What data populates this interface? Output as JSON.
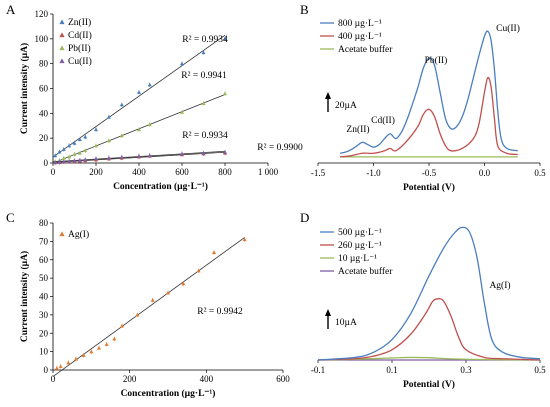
{
  "chart_data": [
    {
      "panel": "A",
      "type": "scatter",
      "xlabel": "Concentration (µg·L⁻¹)",
      "ylabel": "Current intensity (µA)",
      "xlim": [
        0,
        1000
      ],
      "ylim": [
        0,
        120
      ],
      "xticks": [
        "0",
        "200",
        "400",
        "600",
        "800",
        "1 000"
      ],
      "yticks": [
        "0",
        "20",
        "40",
        "60",
        "80",
        "100",
        "120"
      ],
      "grid": false,
      "legend_position": "top-left",
      "series": [
        {
          "name": "Zn(II)",
          "color": "#4a7ebf",
          "marker": "triangle",
          "x": [
            10,
            30,
            50,
            75,
            100,
            125,
            150,
            200,
            260,
            320,
            400,
            450,
            600,
            700,
            800
          ],
          "y": [
            6,
            9,
            11,
            14,
            16,
            19,
            21,
            27,
            37,
            47,
            57,
            63,
            80,
            89,
            100
          ],
          "r2": "R² = 0.9934"
        },
        {
          "name": "Cd(II)",
          "color": "#c0504d",
          "marker": "triangle",
          "x": [
            10,
            30,
            50,
            75,
            100,
            125,
            150,
            200,
            260,
            320,
            400,
            450,
            600,
            700,
            800
          ],
          "y": [
            0.3,
            0.5,
            0.8,
            1.1,
            1.4,
            1.7,
            2,
            2.6,
            3.4,
            4,
            5,
            5.6,
            6.8,
            7.4,
            8
          ],
          "r2": "R² = 0.9900"
        },
        {
          "name": "Pb(II)",
          "color": "#9bbb59",
          "marker": "triangle",
          "x": [
            10,
            30,
            50,
            75,
            100,
            125,
            150,
            200,
            260,
            320,
            400,
            450,
            600,
            700,
            800
          ],
          "y": [
            1,
            2,
            4,
            5,
            7,
            8,
            10,
            14,
            18,
            22,
            27,
            31,
            41,
            48,
            56
          ],
          "r2": "R² = 0.9941"
        },
        {
          "name": "Cu(II)",
          "color": "#7f5ea8",
          "marker": "triangle",
          "x": [
            10,
            30,
            50,
            75,
            100,
            125,
            150,
            200,
            260,
            320,
            400,
            450,
            600,
            700,
            800
          ],
          "y": [
            0.5,
            0.8,
            1.2,
            1.6,
            2,
            2.4,
            2.8,
            3.6,
            4.2,
            4.9,
            5.7,
            6.2,
            7.5,
            8,
            8.8
          ],
          "r2": "R² = 0.9934"
        }
      ]
    },
    {
      "panel": "B",
      "type": "line",
      "xlabel": "Potential (V)",
      "xlim": [
        -1.5,
        0.5
      ],
      "xticks": [
        "-1.5",
        "-1.0",
        "-0.5",
        "0.0",
        "0.5"
      ],
      "scale_bar": "20µA",
      "legend_position": "top-left",
      "peak_labels": [
        "Zn(II)",
        "Cd(II)",
        "Pb(II)",
        "Cu(II)"
      ],
      "series": [
        {
          "name": "800 µg·L⁻¹",
          "color": "#4a7ebf",
          "x": [
            -1.3,
            -1.25,
            -1.2,
            -1.15,
            -1.1,
            -1.05,
            -1.0,
            -0.95,
            -0.9,
            -0.85,
            -0.8,
            -0.75,
            -0.7,
            -0.65,
            -0.6,
            -0.55,
            -0.5,
            -0.45,
            -0.4,
            -0.35,
            -0.3,
            -0.25,
            -0.2,
            -0.15,
            -0.1,
            -0.05,
            0.0,
            0.03,
            0.06,
            0.09,
            0.12,
            0.15,
            0.2,
            0.3
          ],
          "y": [
            8,
            9,
            11,
            14,
            17,
            15,
            13,
            15,
            20,
            24,
            20,
            25,
            35,
            48,
            62,
            78,
            86,
            80,
            58,
            36,
            28,
            30,
            38,
            52,
            70,
            88,
            104,
            108,
            100,
            76,
            42,
            20,
            12,
            10
          ]
        },
        {
          "name": "400 µg·L⁻¹",
          "color": "#c0504d",
          "x": [
            -1.3,
            -1.2,
            -1.1,
            -1.0,
            -0.9,
            -0.85,
            -0.8,
            -0.7,
            -0.6,
            -0.55,
            -0.5,
            -0.45,
            -0.4,
            -0.35,
            -0.3,
            -0.2,
            -0.1,
            -0.05,
            0.0,
            0.03,
            0.06,
            0.09,
            0.12,
            0.2,
            0.3
          ],
          "y": [
            5,
            6,
            8,
            8,
            10,
            12,
            10,
            18,
            30,
            40,
            44,
            38,
            24,
            14,
            10,
            12,
            20,
            32,
            58,
            70,
            62,
            36,
            14,
            8,
            7
          ]
        },
        {
          "name": "Acetate buffer",
          "color": "#9bbb59",
          "x": [
            -1.3,
            0.3
          ],
          "y": [
            5,
            5
          ]
        }
      ]
    },
    {
      "panel": "C",
      "type": "scatter",
      "xlabel": "Concentration (µg·L⁻¹)",
      "ylabel": "Current intensity (µA)",
      "xlim": [
        0,
        600
      ],
      "ylim": [
        0,
        80
      ],
      "xticks": [
        "0",
        "200",
        "400",
        "600"
      ],
      "yticks": [
        "0",
        "10",
        "20",
        "30",
        "40",
        "50",
        "60",
        "70",
        "80"
      ],
      "grid": false,
      "legend_position": "top-left",
      "series": [
        {
          "name": "Ag(I)",
          "color": "#e07a30",
          "marker": "triangle",
          "x": [
            10,
            20,
            40,
            60,
            80,
            100,
            120,
            140,
            160,
            180,
            220,
            260,
            300,
            340,
            380,
            420,
            500
          ],
          "y": [
            1,
            2,
            4,
            6,
            8,
            10,
            12,
            14,
            17,
            24,
            30,
            38,
            42,
            47,
            54,
            64,
            71
          ],
          "r2": "R² = 0.9942"
        }
      ]
    },
    {
      "panel": "D",
      "type": "line",
      "xlabel": "Potential (V)",
      "xlim": [
        -0.1,
        0.5
      ],
      "xticks": [
        "-0.1",
        "0.1",
        "0.3",
        "0.5"
      ],
      "scale_bar": "10µA",
      "peak_labels": [
        "Ag(I)"
      ],
      "legend_position": "top-left",
      "series": [
        {
          "name": "500 µg·L⁻¹",
          "color": "#4a7ebf",
          "x": [
            -0.1,
            0.0,
            0.05,
            0.1,
            0.15,
            0.2,
            0.24,
            0.27,
            0.29,
            0.31,
            0.33,
            0.35,
            0.37,
            0.4,
            0.45,
            0.5
          ],
          "y": [
            0,
            1,
            3,
            8,
            18,
            33,
            44,
            50,
            52,
            50,
            40,
            22,
            8,
            3,
            1,
            0.5
          ]
        },
        {
          "name": "260 µg·L⁻¹",
          "color": "#c0504d",
          "x": [
            -0.1,
            0.0,
            0.05,
            0.1,
            0.15,
            0.19,
            0.21,
            0.225,
            0.24,
            0.26,
            0.28,
            0.3,
            0.35,
            0.4,
            0.5
          ],
          "y": [
            0,
            0.5,
            1.5,
            4,
            10,
            18,
            23,
            24,
            23,
            17,
            9,
            4,
            1,
            0.5,
            0
          ],
          "type": "line"
        },
        {
          "name": "10 µg·L⁻¹",
          "color": "#9bbb59",
          "x": [
            -0.1,
            0.0,
            0.1,
            0.15,
            0.2,
            0.25,
            0.3,
            0.4,
            0.5
          ],
          "y": [
            0,
            0.3,
            0.8,
            1,
            0.9,
            0.5,
            0.3,
            0.1,
            0
          ]
        },
        {
          "name": "Acetate buffer",
          "color": "#7f5ea8",
          "x": [
            -0.1,
            0.5
          ],
          "y": [
            0,
            0
          ]
        }
      ]
    }
  ]
}
